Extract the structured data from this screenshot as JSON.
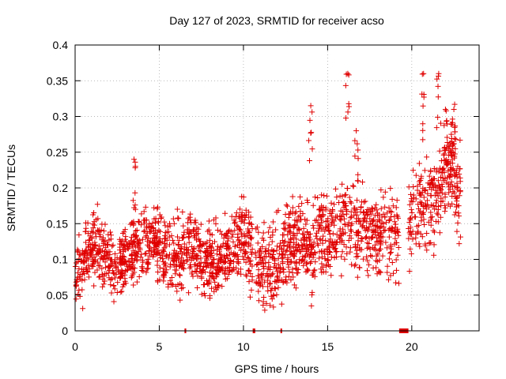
{
  "chart_data": {
    "type": "scatter",
    "title": "Day 127 of 2023, SRMTID for receiver acso",
    "xlabel": "GPS time / hours",
    "ylabel": "SRMTID / TECUs",
    "xlim": [
      0,
      24
    ],
    "ylim": [
      0,
      0.4
    ],
    "x_ticks": [
      0,
      5,
      10,
      15,
      20
    ],
    "y_ticks": [
      0,
      0.05,
      0.1,
      0.15,
      0.2,
      0.25,
      0.3,
      0.35,
      0.4
    ],
    "x_tick_labels": [
      "0",
      "5",
      "10",
      "15",
      "20"
    ],
    "y_tick_labels": [
      "0",
      "0.05",
      "0.1",
      "0.15",
      "0.2",
      "0.25",
      "0.3",
      "0.35",
      "0.4"
    ],
    "grid": true,
    "marker": "+",
    "color": "#e00000",
    "series": [
      {
        "name": "SRMTID",
        "trend": [
          [
            0.0,
            0.08
          ],
          [
            0.5,
            0.09
          ],
          [
            1.0,
            0.12
          ],
          [
            1.5,
            0.11
          ],
          [
            2.0,
            0.1
          ],
          [
            2.5,
            0.09
          ],
          [
            3.0,
            0.1
          ],
          [
            3.5,
            0.11
          ],
          [
            4.0,
            0.12
          ],
          [
            4.5,
            0.13
          ],
          [
            5.0,
            0.12
          ],
          [
            5.5,
            0.11
          ],
          [
            6.0,
            0.1
          ],
          [
            6.5,
            0.11
          ],
          [
            7.0,
            0.12
          ],
          [
            7.5,
            0.1
          ],
          [
            8.0,
            0.09
          ],
          [
            8.5,
            0.1
          ],
          [
            9.0,
            0.11
          ],
          [
            9.5,
            0.12
          ],
          [
            10.0,
            0.13
          ],
          [
            10.5,
            0.11
          ],
          [
            11.0,
            0.09
          ],
          [
            11.5,
            0.09
          ],
          [
            12.0,
            0.1
          ],
          [
            12.5,
            0.11
          ],
          [
            13.0,
            0.12
          ],
          [
            13.5,
            0.13
          ],
          [
            14.0,
            0.12
          ],
          [
            14.5,
            0.13
          ],
          [
            15.0,
            0.13
          ],
          [
            15.5,
            0.14
          ],
          [
            16.0,
            0.15
          ],
          [
            16.5,
            0.15
          ],
          [
            17.0,
            0.14
          ],
          [
            17.5,
            0.15
          ],
          [
            18.0,
            0.14
          ],
          [
            18.5,
            0.15
          ],
          [
            19.0,
            0.14
          ],
          [
            19.5,
            0.13
          ],
          [
            20.0,
            0.16
          ],
          [
            20.5,
            0.17
          ],
          [
            21.0,
            0.18
          ],
          [
            21.5,
            0.19
          ],
          [
            22.0,
            0.22
          ],
          [
            22.5,
            0.24
          ],
          [
            22.8,
            0.18
          ]
        ],
        "spread": 0.035,
        "x_range": [
          0.0,
          22.9
        ],
        "n_points": 2200,
        "outlier_peaks": [
          [
            3.5,
            0.24
          ],
          [
            14.0,
            0.315
          ],
          [
            16.2,
            0.36
          ],
          [
            16.7,
            0.28
          ],
          [
            20.7,
            0.36
          ],
          [
            21.6,
            0.36
          ],
          [
            22.0,
            0.31
          ],
          [
            22.5,
            0.31
          ]
        ],
        "gaps": [
          [
            6.5,
            6.6
          ],
          [
            10.55,
            10.7
          ],
          [
            12.2,
            12.25
          ],
          [
            19.25,
            19.8
          ]
        ]
      }
    ]
  }
}
